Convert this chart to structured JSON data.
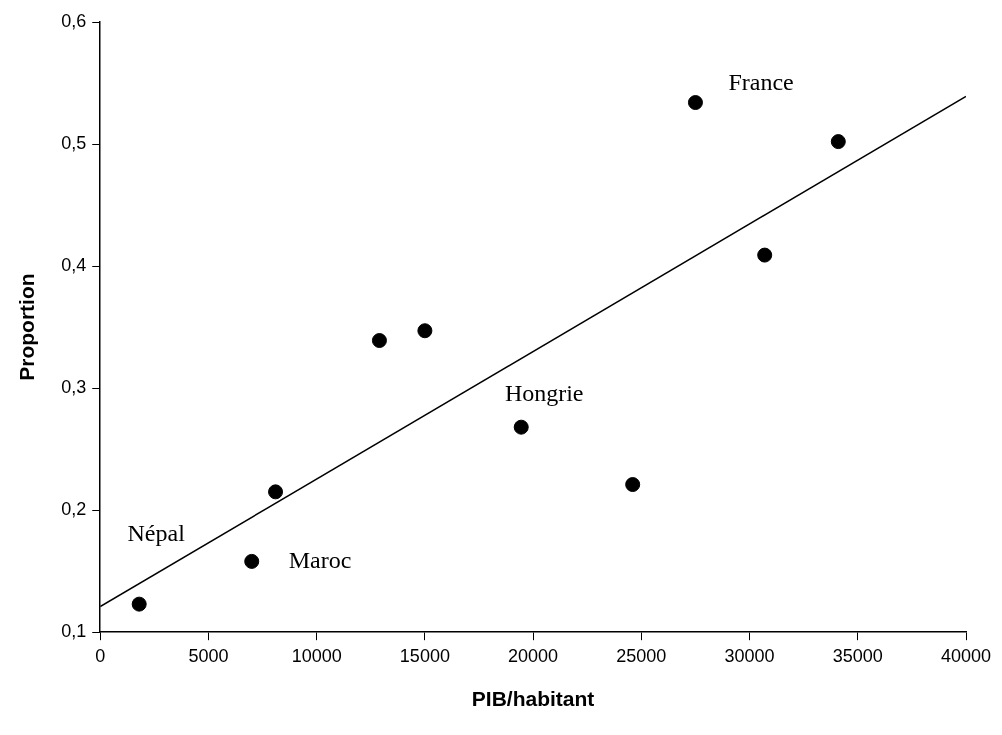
{
  "chart_data": {
    "type": "scatter",
    "xlabel": "PIB/habitant",
    "ylabel": "Proportion",
    "xlim": [
      0,
      40000
    ],
    "ylim": [
      0.1,
      0.6
    ],
    "xticks": [
      0,
      5000,
      10000,
      15000,
      20000,
      25000,
      30000,
      35000,
      40000
    ],
    "yticks": [
      {
        "value": 0.1,
        "label": "0,1"
      },
      {
        "value": 0.2,
        "label": "0,2"
      },
      {
        "value": 0.3,
        "label": "0,3"
      },
      {
        "value": 0.4,
        "label": "0,4"
      },
      {
        "value": 0.5,
        "label": "0,5"
      },
      {
        "value": 0.6,
        "label": "0,6"
      }
    ],
    "grid": false,
    "legend": false,
    "marker": "circle",
    "series": [
      {
        "color": "#000000",
        "x": [
          1800,
          7000,
          8100,
          12900,
          15000,
          19450,
          24600,
          27500,
          30700,
          34100
        ],
        "values": [
          0.123,
          0.158,
          0.215,
          0.339,
          0.347,
          0.268,
          0.221,
          0.534,
          0.409,
          0.502
        ]
      },
      {
        "type": "line",
        "color": "#000000",
        "marker": "none",
        "x": [
          0,
          40000
        ],
        "values": [
          0.121,
          0.539
        ]
      }
    ],
    "annotations": [
      {
        "text": "Népal",
        "x": 1800,
        "y": 0.123
      },
      {
        "text": "Maroc",
        "x": 7000,
        "y": 0.158
      },
      {
        "text": "Hongrie",
        "x": 19450,
        "y": 0.268
      },
      {
        "text": "France",
        "x": 27500,
        "y": 0.534
      }
    ]
  }
}
